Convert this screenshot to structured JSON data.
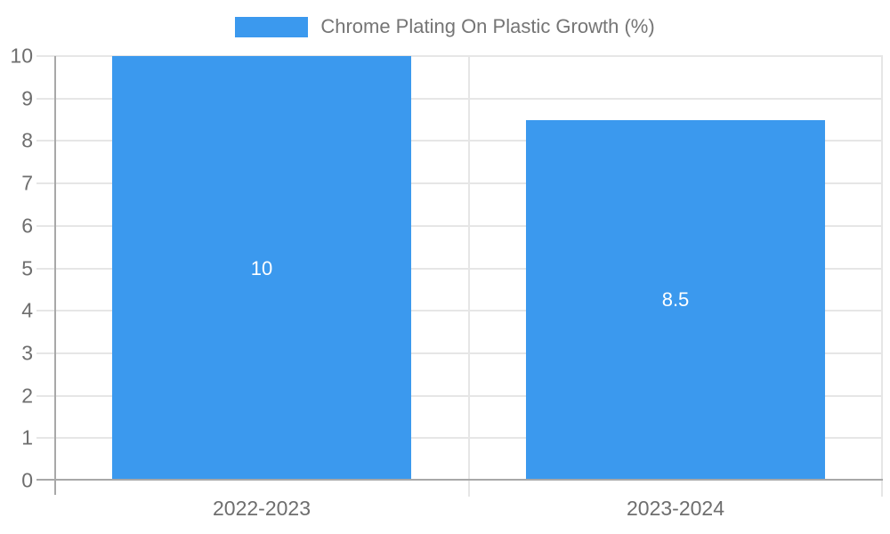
{
  "legend": {
    "label": "Chrome Plating On Plastic Growth (%)"
  },
  "chart_data": {
    "type": "bar",
    "title": "Chrome Plating On Plastic Growth (%)",
    "categories": [
      "2022-2023",
      "2023-2024"
    ],
    "values": [
      10,
      8.5
    ],
    "value_labels": [
      "10",
      "8.5"
    ],
    "ylim": [
      0,
      10
    ],
    "ytick_step": 1,
    "xlabel": "",
    "ylabel": "",
    "grid": true,
    "legend_position": "top-center"
  },
  "colors": {
    "bar": "#3b99ee",
    "bar_label_text": "#ffffff",
    "gridline": "#e6e6e6",
    "axis_line": "#a8a8a8",
    "tick_text": "#6e6e6e",
    "legend_text": "#757575"
  }
}
